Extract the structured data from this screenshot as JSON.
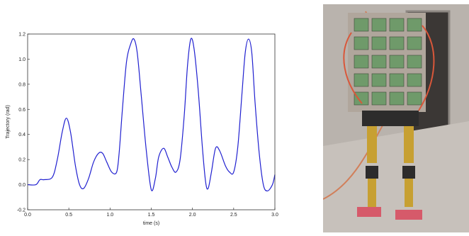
{
  "chart_data": {
    "type": "line",
    "title": "",
    "xlabel": "time (s)",
    "ylabel": "Trajectory (rad)",
    "xlim": [
      0.0,
      3.0
    ],
    "ylim": [
      -0.2,
      1.2
    ],
    "x_ticks": [
      "0.0",
      "0.5",
      "1.0",
      "1.5",
      "2.0",
      "2.5",
      "3.0"
    ],
    "y_ticks": [
      "-0.2",
      "0.0",
      "0.2",
      "0.4",
      "0.6",
      "0.8",
      "1.0",
      "1.2"
    ],
    "grid": false,
    "legend": "none",
    "line_color": "#2020d0",
    "series": [
      {
        "x": [
          0.0,
          0.1,
          0.15,
          0.2,
          0.3,
          0.36,
          0.42,
          0.47,
          0.52,
          0.58,
          0.63,
          0.68,
          0.74,
          0.8,
          0.86,
          0.91,
          0.96,
          1.02,
          1.08,
          1.11,
          1.15,
          1.2,
          1.25,
          1.29,
          1.33,
          1.38,
          1.44,
          1.5,
          1.55,
          1.59,
          1.65,
          1.7,
          1.75,
          1.8,
          1.85,
          1.9,
          1.94,
          1.98,
          2.02,
          2.07,
          2.12,
          2.16,
          2.19,
          2.23,
          2.28,
          2.33,
          2.4,
          2.45,
          2.5,
          2.55,
          2.6,
          2.64,
          2.68,
          2.72,
          2.76,
          2.81,
          2.86,
          2.91,
          2.97,
          3.0
        ],
        "y": [
          0.0,
          0.0,
          0.04,
          0.04,
          0.06,
          0.2,
          0.42,
          0.53,
          0.42,
          0.15,
          0.0,
          -0.03,
          0.05,
          0.18,
          0.25,
          0.25,
          0.18,
          0.1,
          0.1,
          0.25,
          0.6,
          0.98,
          1.12,
          1.16,
          1.05,
          0.7,
          0.27,
          -0.04,
          0.05,
          0.22,
          0.29,
          0.22,
          0.14,
          0.1,
          0.2,
          0.55,
          0.95,
          1.16,
          1.08,
          0.75,
          0.3,
          0.02,
          -0.03,
          0.1,
          0.29,
          0.27,
          0.15,
          0.1,
          0.1,
          0.3,
          0.72,
          1.05,
          1.16,
          1.05,
          0.65,
          0.25,
          0.0,
          -0.05,
          0.0,
          0.08
        ]
      }
    ]
  },
  "photo": {
    "subject": "humanoid-robot",
    "colors": {
      "wall": "#b9b3ad",
      "door": "#3b3735",
      "floor": "#c7c1bb",
      "frame": "#b0a69c",
      "board": "#6f9a6a",
      "legs": "#c7a032",
      "feet": "#d65a6a",
      "wire": "#d9573a",
      "cable": "#d17f5a"
    }
  }
}
